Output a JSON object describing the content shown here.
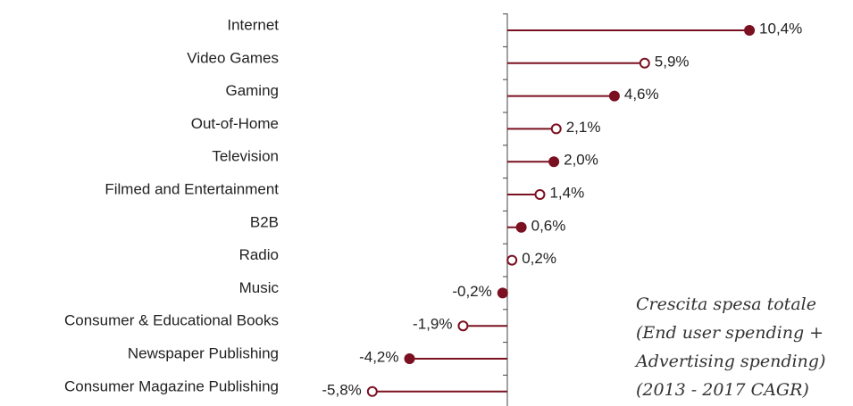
{
  "chart_data": {
    "type": "lollipop",
    "categories": [
      "Internet",
      "Video Games",
      "Gaming",
      "Out-of-Home",
      "Television",
      "Filmed and Entertainment",
      "B2B",
      "Radio",
      "Music",
      "Consumer & Educational Books",
      "Newspaper Publishing",
      "Consumer Magazine Publishing"
    ],
    "values": [
      10.4,
      5.9,
      4.6,
      2.1,
      2.0,
      1.4,
      0.6,
      0.2,
      -0.2,
      -1.9,
      -4.2,
      -5.8
    ],
    "value_labels": [
      "10,4%",
      "5,9%",
      "4,6%",
      "2,1%",
      "2,0%",
      "1,4%",
      "0,6%",
      "0,2%",
      "-0,2%",
      "-1,9%",
      "-4,2%",
      "-5,8%"
    ],
    "filled": [
      true,
      false,
      true,
      false,
      true,
      false,
      true,
      false,
      true,
      false,
      true,
      false
    ],
    "color": "#7a1020",
    "xlim": [
      -6,
      11
    ],
    "annotation": [
      "Crescita spesa totale",
      "(End user spending +",
      "Advertising spending)",
      "(2013 - 2017 CAGR)"
    ]
  }
}
